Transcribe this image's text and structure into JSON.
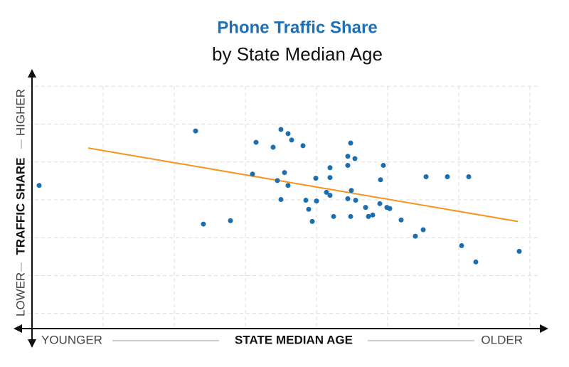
{
  "chart_data": {
    "type": "scatter",
    "title": "Phone Traffic Share",
    "subtitle": "by State Median Age",
    "x_label_low": "YOUNGER",
    "x_label": "STATE MEDIAN AGE",
    "x_label_high": "OLDER",
    "y_label_low": "LOWER",
    "y_label": "TRAFFIC SHARE",
    "y_label_high": "HIGHER",
    "xlim": [
      -0.05,
      7.2
    ],
    "ylim": [
      0.6,
      7.4
    ],
    "xticks": [
      0,
      1,
      2,
      3,
      4,
      5,
      6,
      7
    ],
    "yticks": [
      1,
      2,
      3,
      4,
      5,
      6,
      7
    ],
    "grid": true,
    "series": [
      {
        "color": "#1a6fb0",
        "x": [
          0.1,
          2.3,
          2.41,
          2.79,
          3.1,
          3.15,
          3.39,
          3.45,
          3.5,
          3.5,
          3.55,
          3.6,
          3.6,
          3.65,
          3.81,
          3.85,
          3.89,
          3.94,
          3.99,
          4.0,
          4.14,
          4.19,
          4.19,
          4.19,
          4.24,
          4.44,
          4.44,
          4.44,
          4.48,
          4.48,
          4.49,
          4.54,
          4.55,
          4.69,
          4.73,
          4.79,
          4.89,
          4.9,
          4.94,
          4.99,
          5.03,
          5.19,
          5.39,
          5.5,
          5.54,
          5.84,
          6.04,
          6.14,
          6.24,
          6.85
        ],
        "values": [
          4.38,
          5.82,
          3.36,
          3.45,
          4.68,
          5.52,
          5.39,
          4.51,
          5.86,
          4.01,
          4.72,
          5.75,
          4.38,
          5.58,
          5.43,
          3.99,
          3.75,
          3.43,
          4.57,
          3.97,
          4.2,
          4.85,
          4.59,
          4.12,
          3.56,
          5.15,
          4.91,
          4.03,
          3.56,
          5.5,
          4.25,
          5.09,
          3.99,
          3.8,
          3.56,
          3.6,
          3.9,
          4.53,
          4.91,
          3.8,
          3.77,
          3.47,
          3.04,
          3.21,
          4.61,
          4.61,
          2.79,
          4.61,
          2.36,
          2.64
        ]
      }
    ],
    "trendline": {
      "color": "#f7941d",
      "x": [
        0.79,
        6.83
      ],
      "y": [
        5.37,
        3.43
      ]
    }
  }
}
